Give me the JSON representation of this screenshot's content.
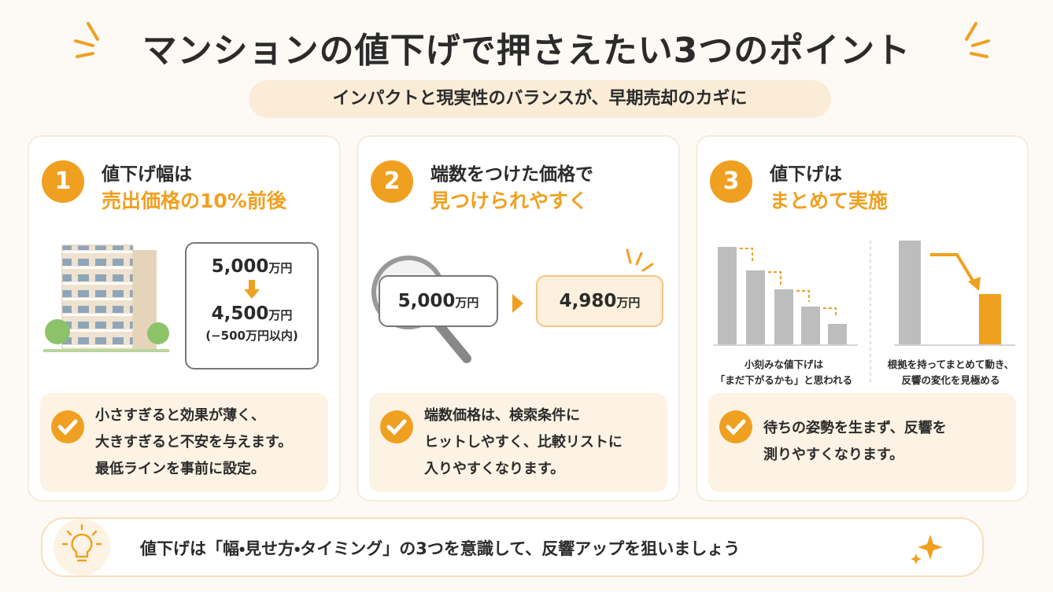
{
  "header": {
    "title": "マンションの値下げで押さえたい3つのポイント",
    "subtitle": "インパクトと現実性のバランスが、早期売却のカギに"
  },
  "cards": [
    {
      "number": "1",
      "heading": [
        "値下げ幅は",
        "売出価格の10%前後"
      ],
      "illustration": {
        "before": {
          "amount": "5,000",
          "unit": "万円"
        },
        "after": {
          "amount": "4,500",
          "unit": "万円"
        },
        "note": "(−500万円以内)"
      },
      "note": [
        "小さすぎると効果が薄く、",
        "大きすぎると不安を与えます。",
        "最低ラインを事前に設定。"
      ]
    },
    {
      "number": "2",
      "heading": [
        "端数をつけた価格で",
        "見つけられやすく"
      ],
      "illustration": {
        "before": {
          "amount": "5,000",
          "unit": "万円"
        },
        "after": {
          "amount": "4,980",
          "unit": "万円"
        }
      },
      "note": [
        "端数価格は、検索条件に",
        "ヒットしやすく、比較リストに",
        "入りやすくなります。"
      ]
    },
    {
      "number": "3",
      "heading": [
        "値下げは",
        "まとめて実施"
      ],
      "illustration": {
        "left_caption": [
          "小刻みな値下げは",
          "「まだ下がるかも」と思われる"
        ],
        "right_caption": [
          "根拠を持ってまとめて動き、",
          "反響の変化を見極める"
        ]
      },
      "note": [
        "待ちの姿勢を生まず、反響を",
        "測りやすくなります。"
      ]
    }
  ],
  "footer": {
    "text": "値下げは「幅・見せ方・タイミング」の3つを意識して、反響アップを狙いましょう"
  }
}
